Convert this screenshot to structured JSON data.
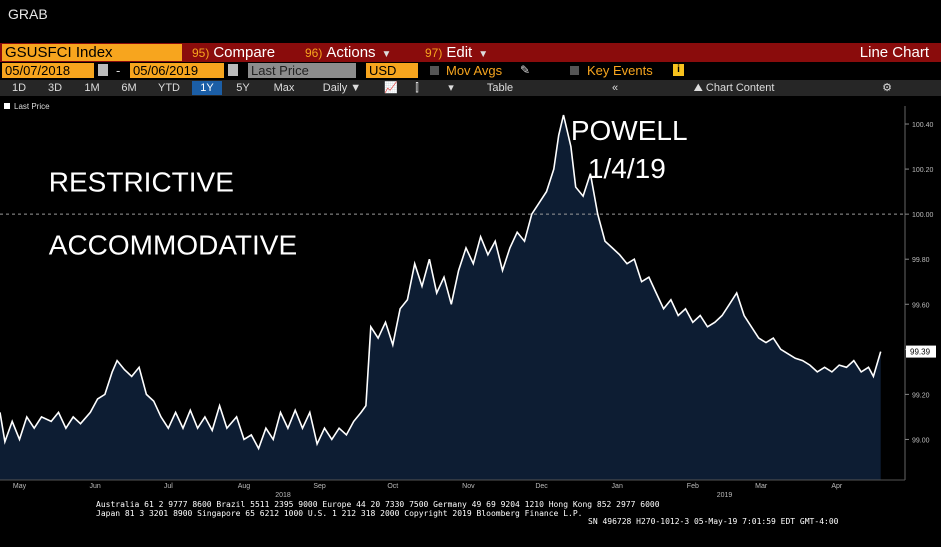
{
  "window": {
    "title": "GRAB"
  },
  "toolbar": {
    "ticker": "GSUSFCI Index",
    "compare_num": "95)",
    "compare": "Compare",
    "actions_num": "96)",
    "actions": "Actions",
    "edit_num": "97)",
    "edit": "Edit",
    "chart_type": "Line Chart"
  },
  "settings": {
    "start_date": "05/07/2018",
    "dash": "-",
    "end_date": "05/06/2019",
    "field": "Last Price",
    "currency": "USD",
    "mov_avgs": "Mov Avgs",
    "key_events": "Key Events",
    "key_events_badge": "i"
  },
  "ranges": {
    "items": [
      "1D",
      "3D",
      "1M",
      "6M",
      "YTD",
      "1Y",
      "5Y",
      "Max"
    ],
    "selected": "1Y",
    "period": "Daily",
    "table": "Table",
    "chart_content": "Chart Content"
  },
  "footer": {
    "line1": "Australia 61 2 9777 8600 Brazil 5511 2395 9000 Europe 44 20 7330 7500 Germany 49 69 9204 1210 Hong Kong 852 2977 6000",
    "line2": "Japan 81 3 3201 8900        Singapore 65 6212 1000        U.S. 1 212 318 2000             Copyright 2019 Bloomberg Finance L.P.",
    "line3": "SN 496728 H270-1012-3 05-May-19  7:01:59 EDT  GMT-4:00"
  },
  "colors": {
    "area": "#0d1d33",
    "line": "#ffffff",
    "accent": "#f7a51e",
    "bar": "#8a0c0c"
  },
  "chart_data": {
    "type": "area",
    "legend": "Last Price",
    "legend_position": "top-left",
    "ylim": [
      98.82,
      100.48
    ],
    "yticks": [
      99.0,
      99.2,
      99.4,
      99.6,
      99.8,
      100.0,
      100.2,
      100.4
    ],
    "ytick_labels": [
      "99.00",
      "99.20",
      "99.40",
      "99.60",
      "99.80",
      "100.00",
      "100.20",
      "100.40"
    ],
    "reference_line": 100.0,
    "last_value_label": "99.39",
    "last_value": 99.39,
    "x_start": "2018-05-07",
    "x_end": "2019-05-06",
    "xticks": [
      {
        "date": "2018-05-15",
        "label": "May"
      },
      {
        "date": "2018-06-15",
        "label": "Jun"
      },
      {
        "date": "2018-07-15",
        "label": "Jul"
      },
      {
        "date": "2018-08-15",
        "label": "Aug"
      },
      {
        "date": "2018-09-15",
        "label": "Sep"
      },
      {
        "date": "2018-10-15",
        "label": "Oct"
      },
      {
        "date": "2018-11-15",
        "label": "Nov"
      },
      {
        "date": "2018-12-15",
        "label": "Dec"
      },
      {
        "date": "2019-01-15",
        "label": "Jan"
      },
      {
        "date": "2019-02-15",
        "label": "Feb"
      },
      {
        "date": "2019-03-15",
        "label": "Mar"
      },
      {
        "date": "2019-04-15",
        "label": "Apr"
      }
    ],
    "year_labels": [
      {
        "date": "2018-08-31",
        "label": "2018"
      },
      {
        "date": "2019-02-28",
        "label": "2019"
      }
    ],
    "annotations": [
      {
        "text": "POWELL",
        "date": "2018-12-27",
        "value": 100.33
      },
      {
        "text": "1/4/19",
        "date": "2019-01-03",
        "value": 100.16
      },
      {
        "text": "RESTRICTIVE",
        "date": "2018-05-27",
        "value": 100.1
      },
      {
        "text": "ACCOMMODATIVE",
        "date": "2018-05-27",
        "value": 99.82
      }
    ],
    "series": [
      {
        "name": "Last Price",
        "points": [
          [
            "2018-05-07",
            99.12
          ],
          [
            "2018-05-09",
            98.99
          ],
          [
            "2018-05-12",
            99.08
          ],
          [
            "2018-05-15",
            99.0
          ],
          [
            "2018-05-18",
            99.1
          ],
          [
            "2018-05-21",
            99.05
          ],
          [
            "2018-05-24",
            99.1
          ],
          [
            "2018-05-28",
            99.08
          ],
          [
            "2018-05-31",
            99.12
          ],
          [
            "2018-06-03",
            99.05
          ],
          [
            "2018-06-06",
            99.1
          ],
          [
            "2018-06-09",
            99.07
          ],
          [
            "2018-06-13",
            99.12
          ],
          [
            "2018-06-16",
            99.18
          ],
          [
            "2018-06-19",
            99.2
          ],
          [
            "2018-06-22",
            99.3
          ],
          [
            "2018-06-24",
            99.35
          ],
          [
            "2018-06-27",
            99.31
          ],
          [
            "2018-06-30",
            99.28
          ],
          [
            "2018-07-03",
            99.32
          ],
          [
            "2018-07-06",
            99.2
          ],
          [
            "2018-07-09",
            99.17
          ],
          [
            "2018-07-12",
            99.1
          ],
          [
            "2018-07-15",
            99.05
          ],
          [
            "2018-07-18",
            99.12
          ],
          [
            "2018-07-21",
            99.05
          ],
          [
            "2018-07-24",
            99.13
          ],
          [
            "2018-07-27",
            99.05
          ],
          [
            "2018-07-30",
            99.1
          ],
          [
            "2018-08-02",
            99.04
          ],
          [
            "2018-08-05",
            99.15
          ],
          [
            "2018-08-08",
            99.05
          ],
          [
            "2018-08-12",
            99.1
          ],
          [
            "2018-08-15",
            99.0
          ],
          [
            "2018-08-18",
            99.02
          ],
          [
            "2018-08-21",
            98.96
          ],
          [
            "2018-08-24",
            99.05
          ],
          [
            "2018-08-27",
            99.0
          ],
          [
            "2018-08-30",
            99.12
          ],
          [
            "2018-09-02",
            99.05
          ],
          [
            "2018-09-05",
            99.13
          ],
          [
            "2018-09-08",
            99.05
          ],
          [
            "2018-09-11",
            99.12
          ],
          [
            "2018-09-14",
            98.98
          ],
          [
            "2018-09-17",
            99.05
          ],
          [
            "2018-09-20",
            99.0
          ],
          [
            "2018-09-23",
            99.05
          ],
          [
            "2018-09-26",
            99.02
          ],
          [
            "2018-09-29",
            99.08
          ],
          [
            "2018-10-02",
            99.12
          ],
          [
            "2018-10-04",
            99.15
          ],
          [
            "2018-10-06",
            99.5
          ],
          [
            "2018-10-09",
            99.45
          ],
          [
            "2018-10-12",
            99.52
          ],
          [
            "2018-10-15",
            99.42
          ],
          [
            "2018-10-18",
            99.58
          ],
          [
            "2018-10-21",
            99.62
          ],
          [
            "2018-10-24",
            99.78
          ],
          [
            "2018-10-27",
            99.68
          ],
          [
            "2018-10-30",
            99.8
          ],
          [
            "2018-11-02",
            99.65
          ],
          [
            "2018-11-05",
            99.72
          ],
          [
            "2018-11-08",
            99.6
          ],
          [
            "2018-11-11",
            99.75
          ],
          [
            "2018-11-14",
            99.85
          ],
          [
            "2018-11-17",
            99.78
          ],
          [
            "2018-11-20",
            99.9
          ],
          [
            "2018-11-23",
            99.82
          ],
          [
            "2018-11-26",
            99.88
          ],
          [
            "2018-11-29",
            99.75
          ],
          [
            "2018-12-02",
            99.85
          ],
          [
            "2018-12-05",
            99.92
          ],
          [
            "2018-12-08",
            99.88
          ],
          [
            "2018-12-11",
            100.0
          ],
          [
            "2018-12-14",
            100.05
          ],
          [
            "2018-12-17",
            100.1
          ],
          [
            "2018-12-20",
            100.2
          ],
          [
            "2018-12-22",
            100.35
          ],
          [
            "2018-12-24",
            100.44
          ],
          [
            "2018-12-27",
            100.3
          ],
          [
            "2018-12-29",
            100.12
          ],
          [
            "2019-01-01",
            100.08
          ],
          [
            "2019-01-04",
            100.18
          ],
          [
            "2019-01-07",
            100.0
          ],
          [
            "2019-01-10",
            99.88
          ],
          [
            "2019-01-13",
            99.85
          ],
          [
            "2019-01-16",
            99.82
          ],
          [
            "2019-01-19",
            99.78
          ],
          [
            "2019-01-22",
            99.8
          ],
          [
            "2019-01-25",
            99.7
          ],
          [
            "2019-01-28",
            99.72
          ],
          [
            "2019-01-31",
            99.65
          ],
          [
            "2019-02-03",
            99.58
          ],
          [
            "2019-02-06",
            99.62
          ],
          [
            "2019-02-09",
            99.55
          ],
          [
            "2019-02-12",
            99.58
          ],
          [
            "2019-02-15",
            99.52
          ],
          [
            "2019-02-18",
            99.55
          ],
          [
            "2019-02-21",
            99.5
          ],
          [
            "2019-02-24",
            99.52
          ],
          [
            "2019-02-27",
            99.55
          ],
          [
            "2019-03-02",
            99.6
          ],
          [
            "2019-03-05",
            99.65
          ],
          [
            "2019-03-08",
            99.55
          ],
          [
            "2019-03-11",
            99.5
          ],
          [
            "2019-03-14",
            99.45
          ],
          [
            "2019-03-17",
            99.43
          ],
          [
            "2019-03-20",
            99.45
          ],
          [
            "2019-03-23",
            99.4
          ],
          [
            "2019-03-26",
            99.38
          ],
          [
            "2019-03-29",
            99.36
          ],
          [
            "2019-04-01",
            99.35
          ],
          [
            "2019-04-04",
            99.33
          ],
          [
            "2019-04-07",
            99.3
          ],
          [
            "2019-04-10",
            99.32
          ],
          [
            "2019-04-13",
            99.3
          ],
          [
            "2019-04-16",
            99.33
          ],
          [
            "2019-04-19",
            99.32
          ],
          [
            "2019-04-22",
            99.35
          ],
          [
            "2019-04-25",
            99.3
          ],
          [
            "2019-04-28",
            99.32
          ],
          [
            "2019-04-30",
            99.28
          ],
          [
            "2019-05-03",
            99.39
          ]
        ]
      }
    ]
  }
}
